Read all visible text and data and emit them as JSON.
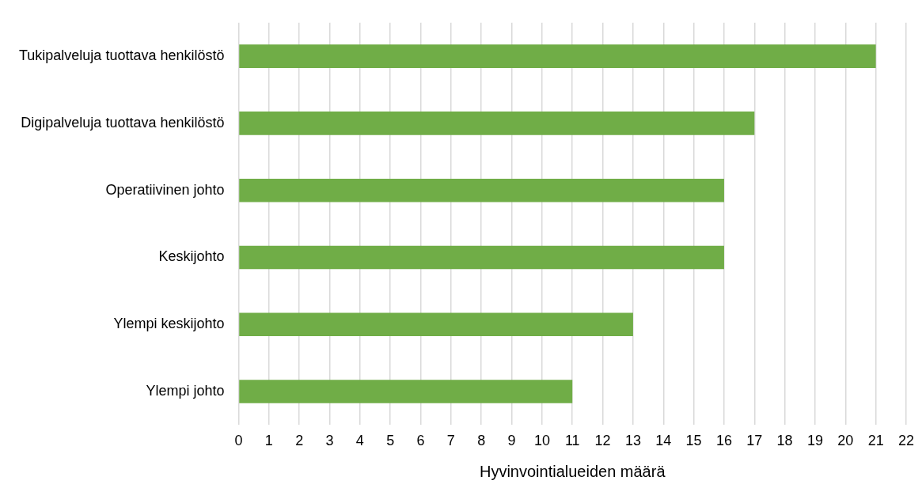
{
  "chart_data": {
    "type": "bar",
    "orientation": "horizontal",
    "xlabel": "Hyvinvointialueiden määrä",
    "categories": [
      "Tukipalveluja tuottava henkilöstö",
      "Digipalveluja tuottava henkilöstö",
      "Operatiivinen johto",
      "Keskijohto",
      "Ylempi keskijohto",
      "Ylempi johto"
    ],
    "values": [
      21,
      17,
      16,
      16,
      13,
      11
    ],
    "color": "#70ad47",
    "xlim": [
      0,
      22
    ],
    "xticks": [
      0,
      1,
      2,
      3,
      4,
      5,
      6,
      7,
      8,
      9,
      10,
      11,
      12,
      13,
      14,
      15,
      16,
      17,
      18,
      19,
      20,
      21,
      22
    ],
    "grid": "x",
    "legend": false
  }
}
